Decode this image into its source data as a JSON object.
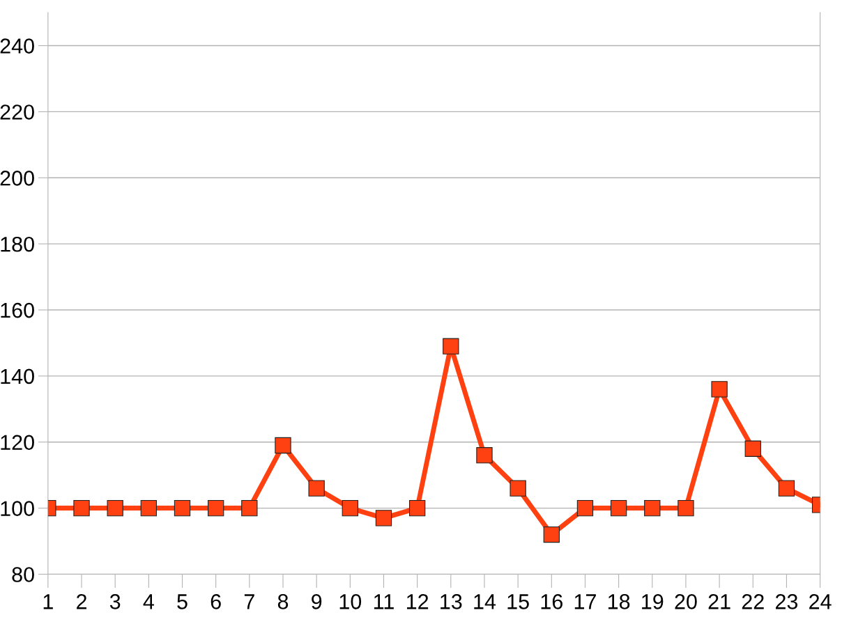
{
  "chart_data": {
    "type": "line",
    "categories": [
      "1",
      "2",
      "3",
      "4",
      "5",
      "6",
      "7",
      "8",
      "9",
      "10",
      "11",
      "12",
      "13",
      "14",
      "15",
      "16",
      "17",
      "18",
      "19",
      "20",
      "21",
      "22",
      "23",
      "24"
    ],
    "series": [
      {
        "color": "#ff4010",
        "values": [
          100,
          100,
          100,
          100,
          100,
          100,
          100,
          119,
          106,
          100,
          97,
          100,
          149,
          116,
          106,
          92,
          100,
          100,
          100,
          100,
          136,
          118,
          106,
          101
        ]
      }
    ],
    "ylim": [
      80,
      250
    ],
    "yticks": [
      80,
      100,
      120,
      140,
      160,
      180,
      200,
      220,
      240
    ],
    "grid": "y",
    "marker": "square",
    "line_style": "solid"
  }
}
